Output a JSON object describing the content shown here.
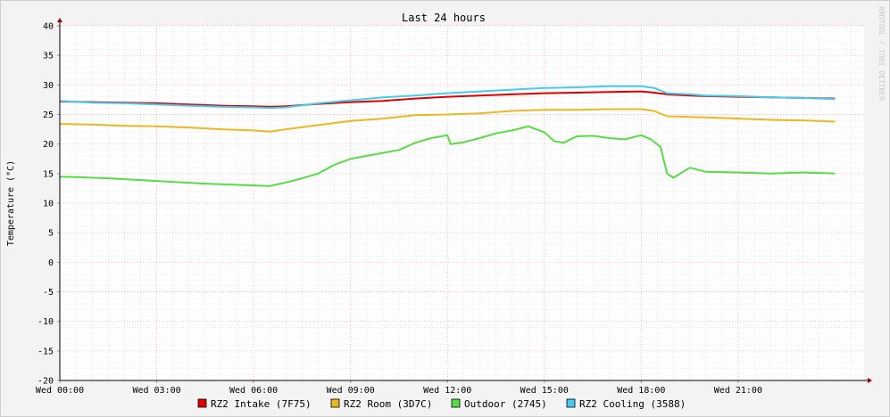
{
  "chart_data": {
    "type": "line",
    "title": "Last 24 hours",
    "ylabel": "Temperature (°C)",
    "watermark": "RRDTOOL / TOBI OETIKER",
    "ylim": [
      -20,
      40
    ],
    "yticks": [
      40,
      35,
      30,
      25,
      20,
      15,
      10,
      5,
      0,
      -5,
      -10,
      -15,
      -20
    ],
    "xlim": [
      0,
      24.9
    ],
    "xticks": [
      {
        "label": "Wed 00:00",
        "x": 0
      },
      {
        "label": "Wed 03:00",
        "x": 3
      },
      {
        "label": "Wed 06:00",
        "x": 6
      },
      {
        "label": "Wed 09:00",
        "x": 9
      },
      {
        "label": "Wed 12:00",
        "x": 12
      },
      {
        "label": "Wed 15:00",
        "x": 15
      },
      {
        "label": "Wed 18:00",
        "x": 18
      },
      {
        "label": "Wed 21:00",
        "x": 21
      }
    ],
    "grid": true,
    "legend_position": "bottom",
    "series": [
      {
        "name": "RZ2 Intake (7F75)",
        "color": "#e00000",
        "x": [
          0,
          1,
          2,
          3,
          4,
          5,
          6,
          6.5,
          7,
          8,
          9,
          10,
          11,
          12,
          13,
          14,
          15,
          16,
          17,
          18,
          18.4,
          18.8,
          19.5,
          20,
          21,
          22,
          23,
          24
        ],
        "y": [
          27.2,
          27.1,
          27.0,
          26.9,
          26.7,
          26.5,
          26.4,
          26.3,
          26.4,
          26.8,
          27.1,
          27.3,
          27.7,
          28.0,
          28.2,
          28.4,
          28.6,
          28.7,
          28.8,
          28.9,
          28.7,
          28.4,
          28.2,
          28.1,
          28.0,
          27.9,
          27.8,
          27.7
        ]
      },
      {
        "name": "RZ2 Room (3D7C)",
        "color": "#e8b820",
        "x": [
          0,
          1,
          2,
          3,
          4,
          5,
          6,
          6.5,
          7,
          8,
          9,
          10,
          11,
          12,
          13,
          14,
          15,
          16,
          17,
          18,
          18.4,
          18.8,
          19.5,
          20,
          21,
          22,
          23,
          24
        ],
        "y": [
          23.4,
          23.3,
          23.1,
          23.0,
          22.8,
          22.5,
          22.3,
          22.1,
          22.5,
          23.2,
          23.9,
          24.3,
          24.9,
          25.0,
          25.2,
          25.6,
          25.8,
          25.8,
          25.9,
          25.9,
          25.6,
          24.7,
          24.6,
          24.5,
          24.3,
          24.1,
          24.0,
          23.8
        ]
      },
      {
        "name": "Outdoor (2745)",
        "color": "#55dd44",
        "x": [
          0,
          0.5,
          1.5,
          2.5,
          3.5,
          4.5,
          5,
          6,
          6.5,
          7,
          7.5,
          8,
          8.5,
          9,
          9.5,
          10,
          10.5,
          11,
          11.5,
          12,
          12.1,
          12.5,
          13,
          13.5,
          14,
          14.5,
          15,
          15.3,
          15.6,
          16,
          16.5,
          17,
          17.5,
          18,
          18.3,
          18.6,
          18.8,
          19,
          19.5,
          20,
          21,
          22,
          23,
          24
        ],
        "y": [
          14.5,
          14.4,
          14.2,
          13.9,
          13.6,
          13.3,
          13.2,
          13.0,
          12.9,
          13.5,
          14.2,
          15.0,
          16.5,
          17.5,
          18.0,
          18.5,
          19.0,
          20.2,
          21.0,
          21.5,
          20.0,
          20.3,
          21.0,
          21.8,
          22.3,
          23.0,
          22.0,
          20.5,
          20.2,
          21.3,
          21.4,
          21.0,
          20.8,
          21.5,
          20.8,
          19.5,
          15.0,
          14.3,
          16.0,
          15.3,
          15.2,
          15.0,
          15.2,
          15.0
        ]
      },
      {
        "name": "RZ2 Cooling (3588)",
        "color": "#44ccee",
        "x": [
          0,
          1,
          2,
          3,
          4,
          5,
          6,
          6.5,
          7,
          8,
          9,
          10,
          11,
          12,
          13,
          14,
          15,
          16,
          17,
          18,
          18.4,
          18.8,
          19.5,
          20,
          21,
          22,
          23,
          24
        ],
        "y": [
          27.3,
          27.0,
          26.9,
          26.7,
          26.5,
          26.3,
          26.2,
          26.1,
          26.2,
          26.9,
          27.4,
          27.9,
          28.2,
          28.6,
          28.9,
          29.2,
          29.5,
          29.6,
          29.8,
          29.8,
          29.5,
          28.6,
          28.4,
          28.2,
          28.1,
          27.9,
          27.8,
          27.6
        ]
      }
    ]
  }
}
